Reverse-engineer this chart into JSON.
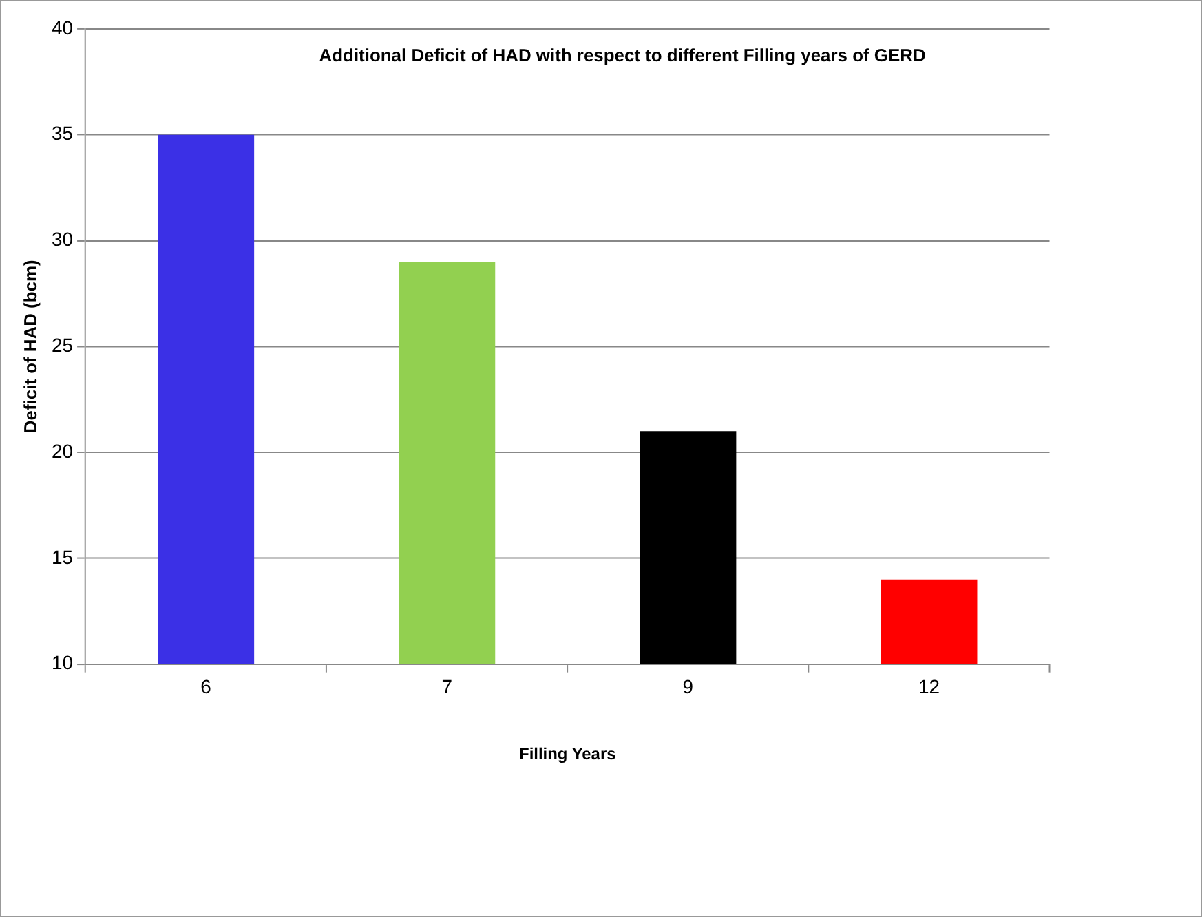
{
  "chart_data": {
    "type": "bar",
    "title": "Additional Deficit of HAD with respect to different Filling years of GERD",
    "xlabel": "Filling Years",
    "ylabel": "Deficit of HAD (bcm)",
    "categories": [
      "6",
      "7",
      "9",
      "12"
    ],
    "values": [
      35,
      29,
      21,
      14
    ],
    "colors": [
      "#3b30e6",
      "#92d050",
      "#000000",
      "#ff0000"
    ],
    "ylim": [
      10,
      40
    ],
    "yticks": [
      10,
      15,
      20,
      25,
      30,
      35,
      40
    ],
    "grid": "y",
    "legend": false
  }
}
